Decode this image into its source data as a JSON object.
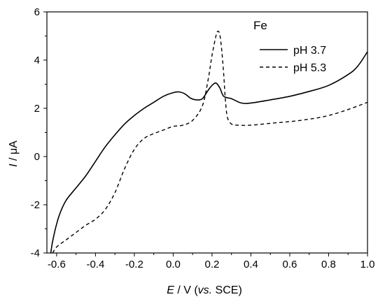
{
  "chart_data": {
    "type": "line",
    "title": "",
    "legend_title": "Fe",
    "legend_placement": "top-right",
    "grid": false,
    "xlabel": {
      "var": "E",
      "unit": " / V (",
      "note": "vs.",
      "ref": " SCE)"
    },
    "ylabel": {
      "var": "I",
      "unit": " / μA"
    },
    "xlim": [
      -0.65,
      1.0
    ],
    "ylim": [
      -4,
      6
    ],
    "xticks": [
      -0.6,
      -0.4,
      -0.2,
      0.0,
      0.2,
      0.4,
      0.6,
      0.8,
      1.0
    ],
    "xtick_labels": [
      "-0.6",
      "-0.4",
      "-0.2",
      "0.0",
      "0.2",
      "0.4",
      "0.6",
      "0.8",
      "1.0"
    ],
    "yticks": [
      -4,
      -2,
      0,
      2,
      4,
      6
    ],
    "ytick_labels": [
      "-4",
      "-2",
      "0",
      "2",
      "4",
      "6"
    ],
    "series": [
      {
        "name": "pH 3.7",
        "style": "solid",
        "color": "#000000",
        "x": [
          -0.63,
          -0.62,
          -0.6,
          -0.58,
          -0.55,
          -0.5,
          -0.45,
          -0.4,
          -0.35,
          -0.3,
          -0.25,
          -0.2,
          -0.15,
          -0.1,
          -0.05,
          0.0,
          0.03,
          0.06,
          0.09,
          0.12,
          0.15,
          0.18,
          0.2,
          0.22,
          0.24,
          0.26,
          0.3,
          0.35,
          0.4,
          0.5,
          0.6,
          0.7,
          0.8,
          0.9,
          0.95,
          1.0
        ],
        "y": [
          -4.0,
          -3.5,
          -2.8,
          -2.3,
          -1.8,
          -1.3,
          -0.8,
          -0.2,
          0.4,
          0.9,
          1.35,
          1.7,
          2.0,
          2.25,
          2.5,
          2.65,
          2.68,
          2.6,
          2.42,
          2.35,
          2.4,
          2.75,
          2.95,
          3.05,
          2.85,
          2.5,
          2.4,
          2.22,
          2.22,
          2.35,
          2.5,
          2.7,
          2.95,
          3.4,
          3.75,
          4.35
        ]
      },
      {
        "name": "pH 5.3",
        "style": "dashed",
        "color": "#000000",
        "x": [
          -0.62,
          -0.6,
          -0.55,
          -0.5,
          -0.45,
          -0.4,
          -0.35,
          -0.3,
          -0.25,
          -0.2,
          -0.15,
          -0.1,
          -0.05,
          0.0,
          0.05,
          0.1,
          0.15,
          0.18,
          0.2,
          0.22,
          0.23,
          0.24,
          0.25,
          0.26,
          0.27,
          0.28,
          0.3,
          0.33,
          0.4,
          0.5,
          0.6,
          0.7,
          0.8,
          0.9,
          1.0
        ],
        "y": [
          -4.0,
          -3.75,
          -3.45,
          -3.15,
          -2.85,
          -2.6,
          -2.2,
          -1.5,
          -0.5,
          0.3,
          0.75,
          0.95,
          1.1,
          1.25,
          1.3,
          1.5,
          2.1,
          3.2,
          4.2,
          5.0,
          5.2,
          5.05,
          4.4,
          3.4,
          2.2,
          1.6,
          1.35,
          1.3,
          1.3,
          1.38,
          1.45,
          1.55,
          1.7,
          1.95,
          2.25
        ]
      }
    ]
  }
}
